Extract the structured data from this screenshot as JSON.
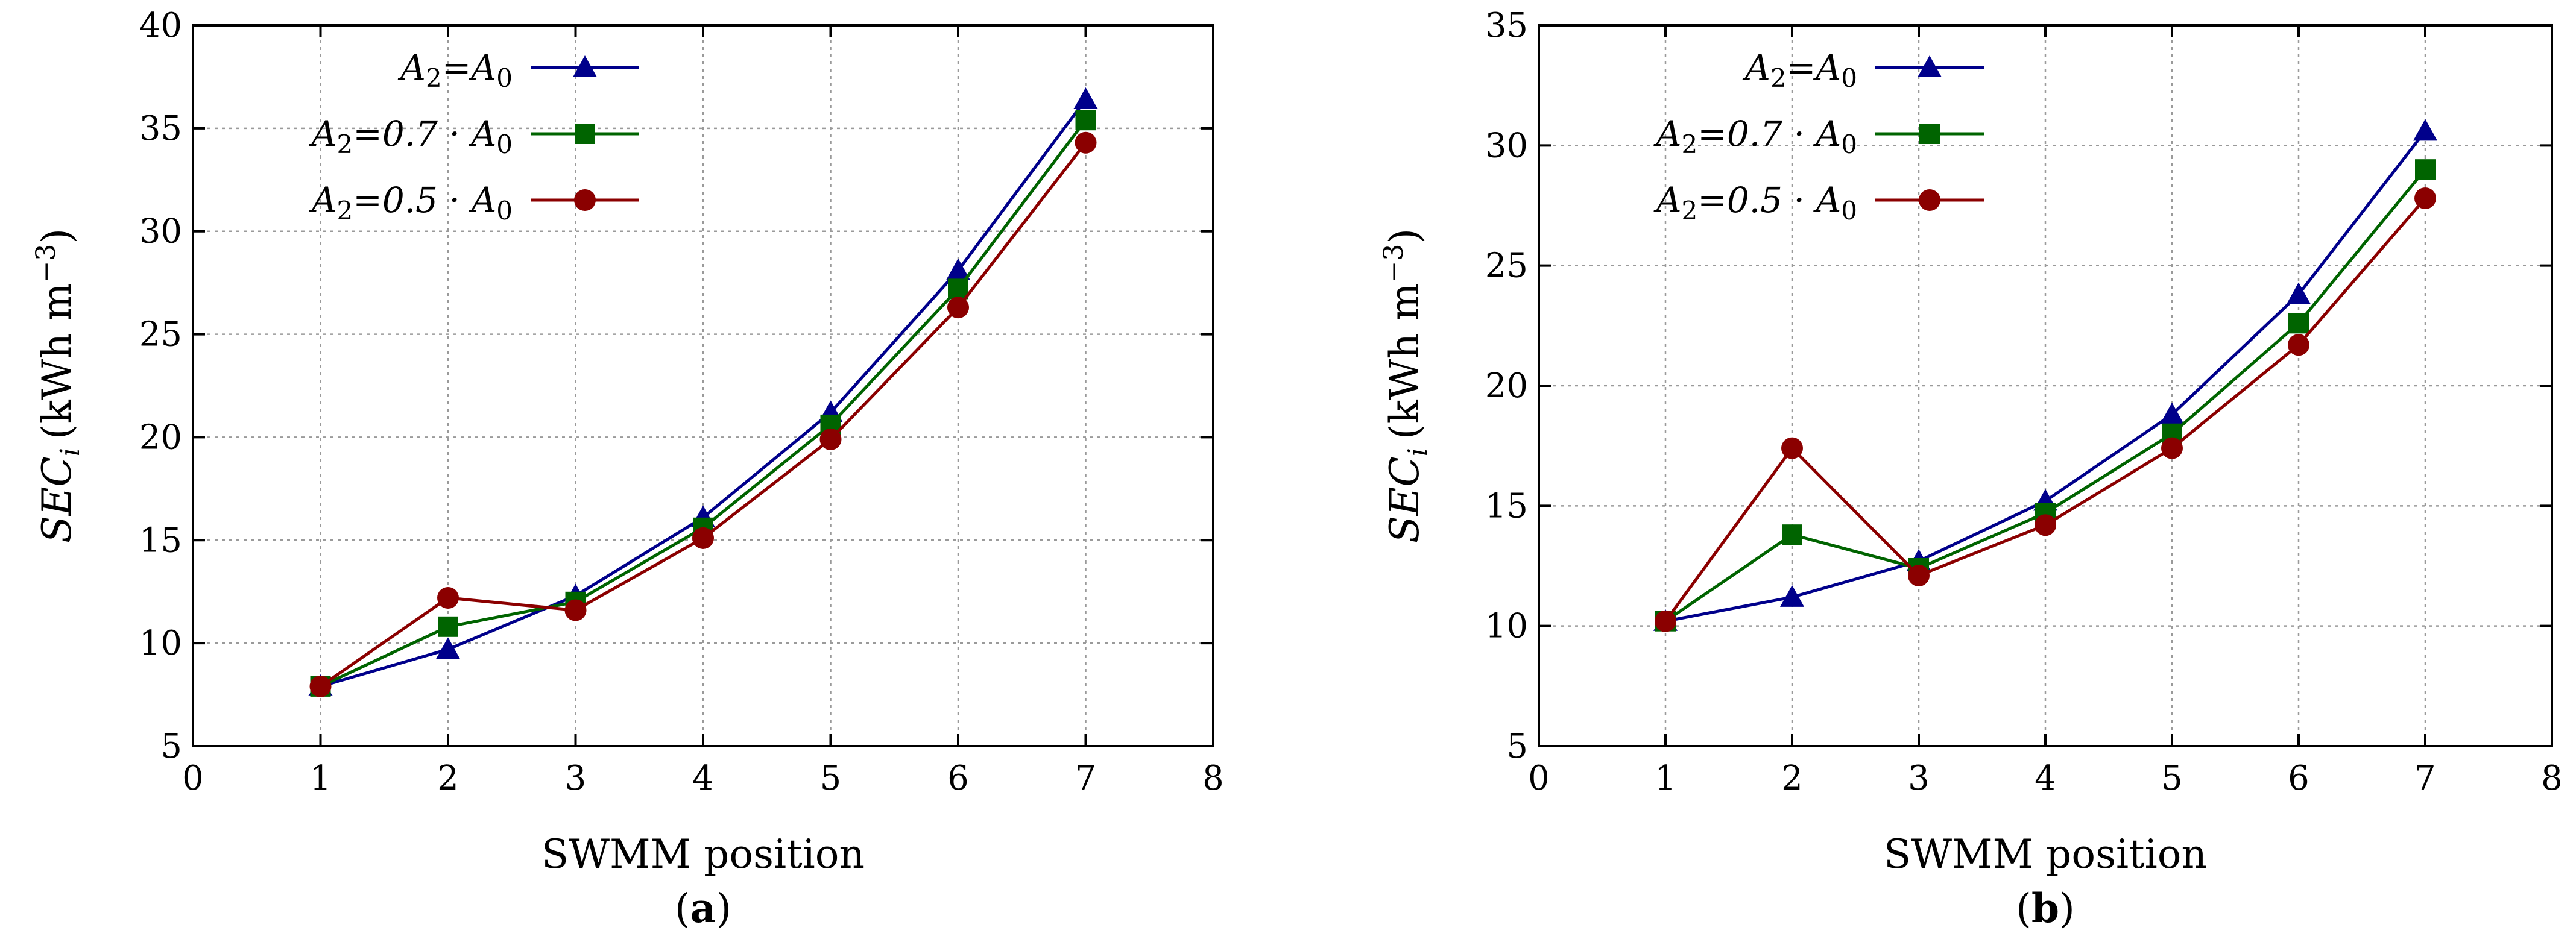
{
  "chart_data": [
    {
      "type": "line",
      "panel_label": "(a)",
      "panel_letter": "a",
      "xlabel": "SWMM position",
      "ylabel_base": "SEC",
      "ylabel_sub": "i",
      "ylabel_units": "(kWh m",
      "ylabel_exp": "−3",
      "ylabel_close": ")",
      "xlim": [
        0,
        8
      ],
      "ylim": [
        5,
        40
      ],
      "xticks": [
        0,
        1,
        2,
        3,
        4,
        5,
        6,
        7,
        8
      ],
      "yticks": [
        5,
        10,
        15,
        20,
        25,
        30,
        35,
        40
      ],
      "grid": true,
      "legend_position": "top-left",
      "x": [
        1,
        2,
        3,
        4,
        5,
        6,
        7
      ],
      "series": [
        {
          "name": "A2=A0",
          "label_parts": [
            "A",
            "2",
            "=A",
            "0"
          ],
          "marker": "triangle",
          "color": "#00008b",
          "values": [
            7.9,
            9.7,
            12.3,
            16.1,
            21.2,
            28.1,
            36.4
          ]
        },
        {
          "name": "A2=0.7 · A0",
          "label_parts": [
            "A",
            "2",
            "=0.7 · A",
            "0"
          ],
          "marker": "square",
          "color": "#006400",
          "values": [
            7.9,
            10.8,
            12.0,
            15.6,
            20.6,
            27.2,
            35.4
          ]
        },
        {
          "name": "A2=0.5 · A0",
          "label_parts": [
            "A",
            "2",
            "=0.5 · A",
            "0"
          ],
          "marker": "circle",
          "color": "#8b0000",
          "values": [
            7.9,
            12.2,
            11.6,
            15.1,
            19.9,
            26.3,
            34.3
          ]
        }
      ]
    },
    {
      "type": "line",
      "panel_label": "(b)",
      "panel_letter": "b",
      "xlabel": "SWMM position",
      "ylabel_base": "SEC",
      "ylabel_sub": "i",
      "ylabel_units": "(kWh m",
      "ylabel_exp": "−3",
      "ylabel_close": ")",
      "xlim": [
        0,
        8
      ],
      "ylim": [
        5,
        35
      ],
      "xticks": [
        0,
        1,
        2,
        3,
        4,
        5,
        6,
        7,
        8
      ],
      "yticks": [
        5,
        10,
        15,
        20,
        25,
        30,
        35
      ],
      "grid": true,
      "legend_position": "top-left",
      "x": [
        1,
        2,
        3,
        4,
        5,
        6,
        7
      ],
      "series": [
        {
          "name": "A2=A0",
          "label_parts": [
            "A",
            "2",
            "=A",
            "0"
          ],
          "marker": "triangle",
          "color": "#00008b",
          "values": [
            10.2,
            11.2,
            12.7,
            15.2,
            18.8,
            23.8,
            30.6
          ]
        },
        {
          "name": "A2=0.7 · A0",
          "label_parts": [
            "A",
            "2",
            "=0.7 · A",
            "0"
          ],
          "marker": "square",
          "color": "#006400",
          "values": [
            10.2,
            13.8,
            12.4,
            14.7,
            18.0,
            22.6,
            29.0
          ]
        },
        {
          "name": "A2=0.5 · A0",
          "label_parts": [
            "A",
            "2",
            "=0.5 · A",
            "0"
          ],
          "marker": "circle",
          "color": "#8b0000",
          "values": [
            10.2,
            17.4,
            12.1,
            14.2,
            17.4,
            21.7,
            27.8
          ]
        }
      ]
    }
  ]
}
